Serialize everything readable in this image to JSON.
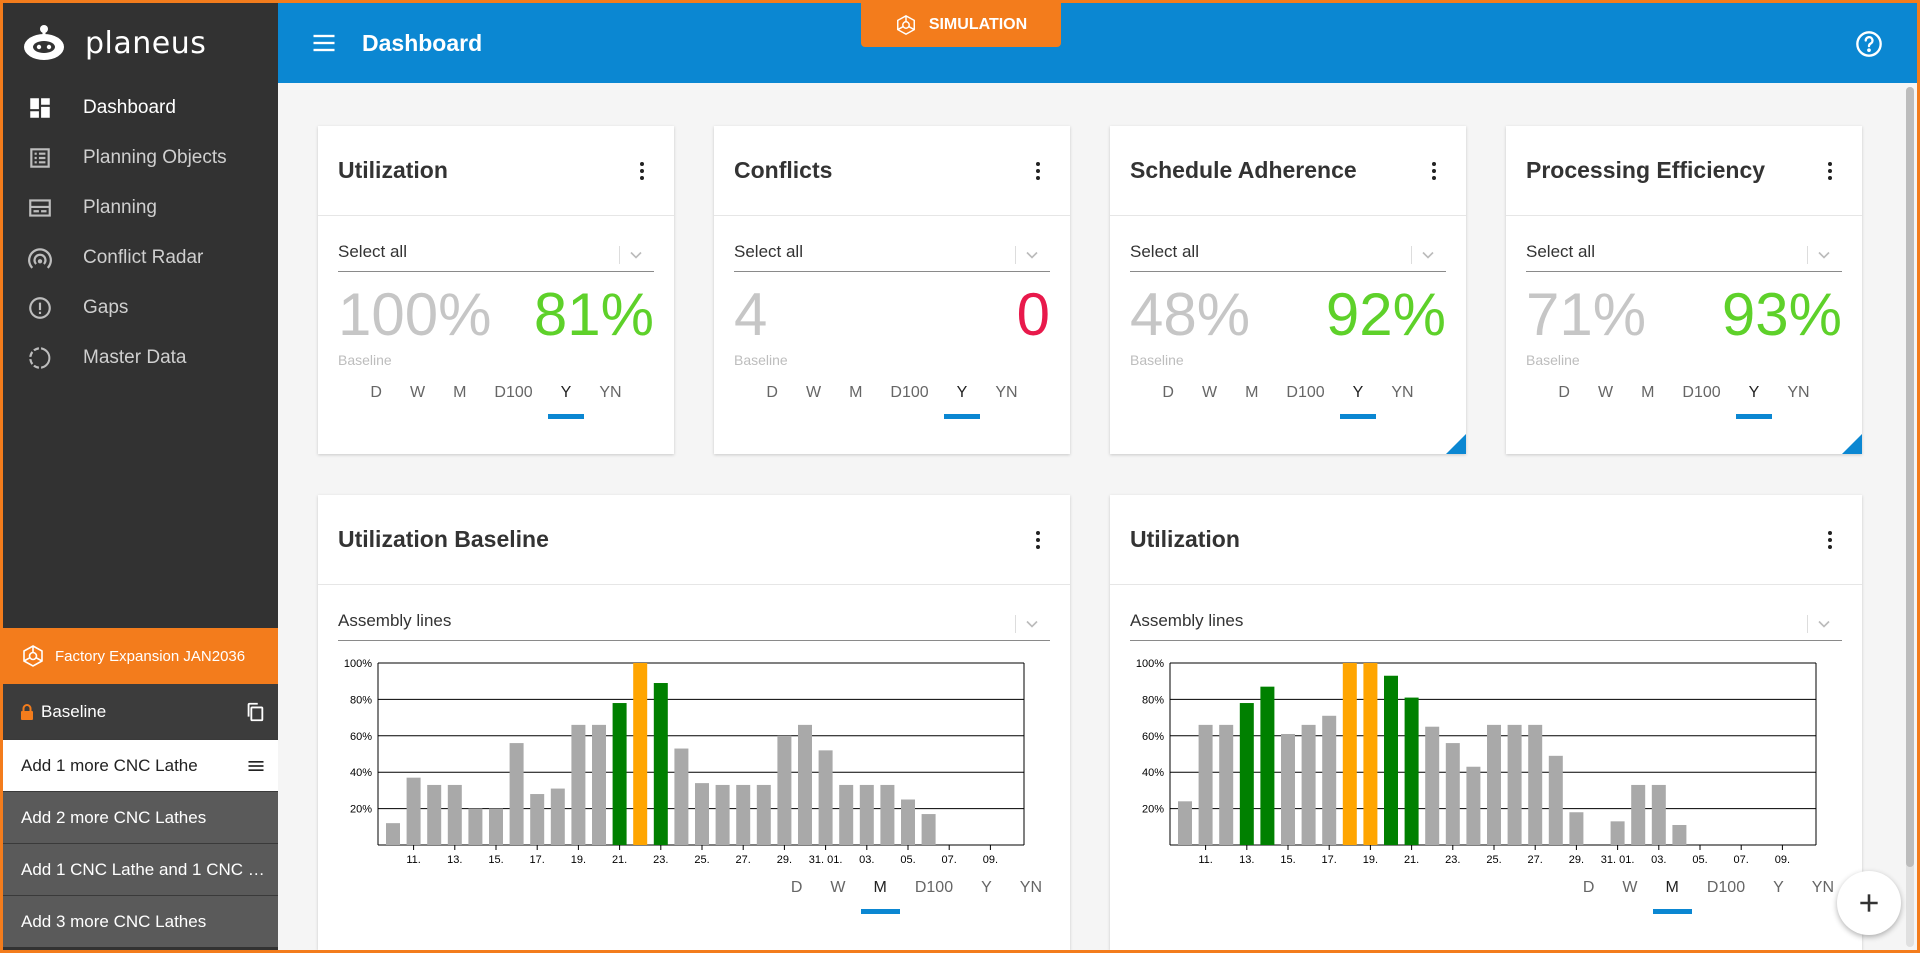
{
  "app": {
    "name": "planeus"
  },
  "sidebar": {
    "items": [
      {
        "label": "Dashboard",
        "icon": "dashboard-icon"
      },
      {
        "label": "Planning Objects",
        "icon": "list-icon"
      },
      {
        "label": "Planning",
        "icon": "planning-icon"
      },
      {
        "label": "Conflict Radar",
        "icon": "radar-icon"
      },
      {
        "label": "Gaps",
        "icon": "alert-circle-icon"
      },
      {
        "label": "Master Data",
        "icon": "master-data-icon"
      }
    ],
    "simulation": {
      "name": "Factory Expansion JAN2036",
      "baseline": "Baseline",
      "variants": [
        "Add 1 more CNC Lathe",
        "Add 2 more CNC Lathes",
        "Add 1 CNC Lathe and 1 CNC …",
        "Add 3 more CNC Lathes"
      ]
    }
  },
  "topbar": {
    "title": "Dashboard",
    "simulation_badge": "SIMULATION"
  },
  "periods": [
    "D",
    "W",
    "M",
    "D100",
    "Y",
    "YN"
  ],
  "kpis": [
    {
      "title": "Utilization",
      "select": "Select all",
      "baseline": "100%",
      "current": "81%",
      "current_color": "#5ed12a",
      "baseline_label": "Baseline",
      "active_period": "Y"
    },
    {
      "title": "Conflicts",
      "select": "Select all",
      "baseline": "4",
      "current": "0",
      "current_color": "#e8194b",
      "baseline_label": "Baseline",
      "active_period": "Y"
    },
    {
      "title": "Schedule Adherence",
      "select": "Select all",
      "baseline": "48%",
      "current": "92%",
      "current_color": "#5ed12a",
      "baseline_label": "Baseline",
      "active_period": "Y"
    },
    {
      "title": "Processing Efficiency",
      "select": "Select all",
      "baseline": "71%",
      "current": "93%",
      "current_color": "#5ed12a",
      "baseline_label": "Baseline",
      "active_period": "Y"
    }
  ],
  "colors": {
    "gray_bar": "#a9a9a9",
    "green_bar": "#008000",
    "orange_bar": "#ffa500",
    "accent": "#0b87d2"
  },
  "chart_data": [
    {
      "type": "bar",
      "title": "Utilization Baseline",
      "select": "Assembly lines",
      "active_period": "M",
      "ylim": [
        0,
        100
      ],
      "yticks": [
        "20%",
        "40%",
        "60%",
        "80%",
        "100%"
      ],
      "xticks": [
        "11.",
        "13.",
        "15.",
        "17.",
        "19.",
        "21.",
        "23.",
        "25.",
        "27.",
        "29.",
        "31. 01.",
        "03.",
        "05.",
        "07.",
        "09."
      ],
      "values": [
        12,
        37,
        33,
        33,
        20,
        20,
        56,
        28,
        31,
        66,
        66,
        78,
        100,
        89,
        53,
        34,
        33,
        33,
        33,
        60,
        66,
        52,
        33,
        33,
        33,
        25,
        17
      ],
      "colors": [
        "g",
        "g",
        "g",
        "g",
        "g",
        "g",
        "g",
        "g",
        "g",
        "g",
        "g",
        "G",
        "O",
        "G",
        "g",
        "g",
        "g",
        "g",
        "g",
        "g",
        "g",
        "g",
        "g",
        "g",
        "g",
        "g",
        "g"
      ]
    },
    {
      "type": "bar",
      "title": "Utilization",
      "select": "Assembly lines",
      "active_period": "M",
      "ylim": [
        0,
        100
      ],
      "yticks": [
        "20%",
        "40%",
        "60%",
        "80%",
        "100%"
      ],
      "xticks": [
        "11.",
        "13.",
        "15.",
        "17.",
        "19.",
        "21.",
        "23.",
        "25.",
        "27.",
        "29.",
        "31. 01.",
        "03.",
        "05.",
        "07.",
        "09."
      ],
      "values": [
        24,
        66,
        66,
        78,
        87,
        61,
        66,
        71,
        100,
        100,
        93,
        81,
        65,
        56,
        43,
        66,
        66,
        66,
        49,
        18,
        0,
        13,
        33,
        33,
        11
      ],
      "colors": [
        "g",
        "g",
        "g",
        "G",
        "G",
        "g",
        "g",
        "g",
        "O",
        "O",
        "G",
        "G",
        "g",
        "g",
        "g",
        "g",
        "g",
        "g",
        "g",
        "g",
        "g",
        "g",
        "g",
        "g",
        "g"
      ]
    }
  ]
}
